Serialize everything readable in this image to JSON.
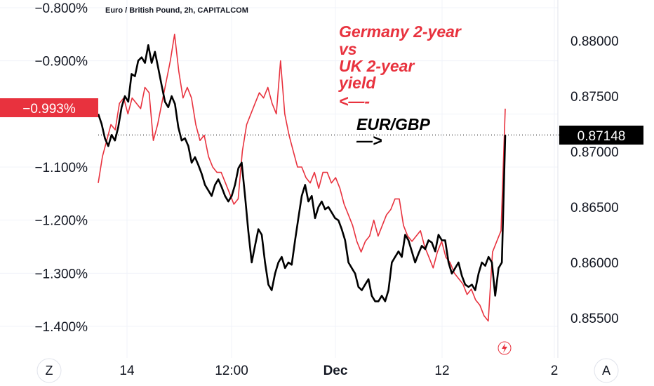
{
  "chart_data": {
    "type": "line",
    "title": "Euro / British Pound, 2h, CAPITALCOM",
    "x_ticks": [
      "14",
      "12:00",
      "Dec",
      "12",
      "2"
    ],
    "left_axis": {
      "ticks": [
        "−0.800%",
        "−0.900%",
        "−1.100%",
        "−1.200%",
        "−1.300%",
        "−1.400%"
      ],
      "current_label": "−0.993%",
      "range": [
        -1.45,
        -0.78
      ]
    },
    "right_axis": {
      "ticks": [
        "0.88000",
        "0.87500",
        "0.87000",
        "0.86500",
        "0.86000",
        "0.85500"
      ],
      "current_label": "0.87148",
      "range": [
        0.8515,
        0.8826
      ]
    },
    "series": [
      {
        "name": "EUR/GBP",
        "axis": "right",
        "color": "#000000",
        "values": [
          0.8734,
          0.8725,
          0.8712,
          0.8705,
          0.8715,
          0.871,
          0.8722,
          0.874,
          0.875,
          0.8745,
          0.877,
          0.8768,
          0.8782,
          0.8785,
          0.878,
          0.8796,
          0.878,
          0.879,
          0.8775,
          0.876,
          0.8745,
          0.874,
          0.875,
          0.8743,
          0.8722,
          0.871,
          0.8712,
          0.8705,
          0.869,
          0.8695,
          0.8688,
          0.868,
          0.867,
          0.8665,
          0.866,
          0.867,
          0.8675,
          0.8668,
          0.866,
          0.8655,
          0.866,
          0.867,
          0.8685,
          0.869,
          0.866,
          0.8628,
          0.86,
          0.8615,
          0.863,
          0.8625,
          0.86,
          0.858,
          0.8575,
          0.859,
          0.86,
          0.8605,
          0.8595,
          0.86,
          0.8598,
          0.862,
          0.864,
          0.866,
          0.867,
          0.8655,
          0.866,
          0.864,
          0.865,
          0.8655,
          0.8648,
          0.865,
          0.8645,
          0.864,
          0.8638,
          0.863,
          0.862,
          0.86,
          0.8595,
          0.859,
          0.8578,
          0.8575,
          0.858,
          0.8585,
          0.857,
          0.8565,
          0.8565,
          0.857,
          0.8565,
          0.8575,
          0.86,
          0.8605,
          0.861,
          0.8605,
          0.8625,
          0.862,
          0.861,
          0.86,
          0.8608,
          0.8615,
          0.8612,
          0.862,
          0.8618,
          0.861,
          0.8625,
          0.862,
          0.862,
          0.86,
          0.859,
          0.8595,
          0.86,
          0.8588,
          0.858,
          0.8578,
          0.858,
          0.8575,
          0.859,
          0.86,
          0.8597,
          0.8605,
          0.86,
          0.857,
          0.8595,
          0.86,
          0.8715
        ]
      },
      {
        "name": "Germany 2-year vs UK 2-year yield",
        "axis": "left",
        "color": "#e8323e",
        "values": [
          -1.13,
          -1.08,
          -1.05,
          -1.02,
          -1.03,
          -0.98,
          -0.97,
          -1.0,
          -0.97,
          -0.98,
          -0.99,
          -0.95,
          -0.96,
          -1.05,
          -1.02,
          -0.98,
          -0.94,
          -0.9,
          -0.85,
          -0.92,
          -0.97,
          -0.95,
          -0.97,
          -1.02,
          -1.05,
          -1.04,
          -1.08,
          -1.1,
          -1.11,
          -1.11,
          -1.13,
          -1.15,
          -1.17,
          -1.16,
          -1.07,
          -1.02,
          -1.0,
          -0.98,
          -0.96,
          -0.97,
          -0.95,
          -0.98,
          -1.0,
          -0.9,
          -1.0,
          -1.04,
          -1.07,
          -1.1,
          -1.1,
          -1.12,
          -1.13,
          -1.11,
          -1.14,
          -1.11,
          -1.11,
          -1.13,
          -1.12,
          -1.14,
          -1.17,
          -1.19,
          -1.21,
          -1.24,
          -1.26,
          -1.24,
          -1.23,
          -1.2,
          -1.23,
          -1.21,
          -1.19,
          -1.18,
          -1.16,
          -1.16,
          -1.21,
          -1.23,
          -1.24,
          -1.23,
          -1.22,
          -1.25,
          -1.27,
          -1.29,
          -1.26,
          -1.24,
          -1.27,
          -1.28,
          -1.3,
          -1.31,
          -1.32,
          -1.34,
          -1.33,
          -1.35,
          -1.36,
          -1.38,
          -1.39,
          -1.26,
          -1.24,
          -1.22,
          -0.99
        ]
      }
    ],
    "annotations": {
      "red_lines": [
        "Germany 2-year",
        "vs",
        "UK 2-year",
        "yield",
        "<—-"
      ],
      "black_lines": [
        "EUR/GBP",
        "—>"
      ]
    },
    "grid": true,
    "legend": "none"
  },
  "ui": {
    "left_button": "Z",
    "right_button": "A"
  }
}
